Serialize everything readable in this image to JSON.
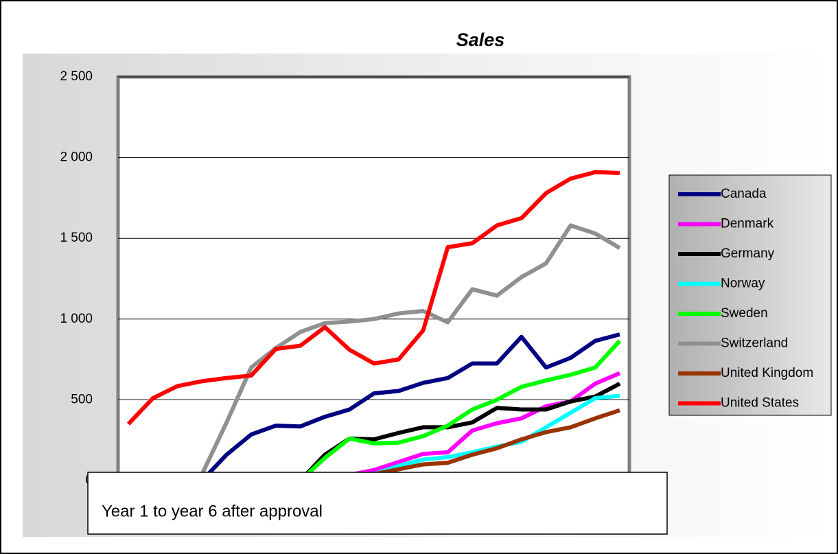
{
  "chart_data": {
    "type": "line",
    "title": "Sales",
    "annotation": "Year 1 to year 6 after approval",
    "categories": [
      null,
      null,
      null,
      null,
      null,
      null,
      null,
      null,
      null,
      null,
      null,
      null,
      null,
      null,
      null,
      null,
      null,
      null,
      null,
      null,
      null
    ],
    "ylim": [
      0,
      2500
    ],
    "yticks": [
      0,
      500,
      {
        "value": 1000,
        "label": "1 000"
      },
      {
        "value": 1500,
        "label": "1 500"
      },
      {
        "value": 2000,
        "label": "2 000"
      },
      {
        "value": 2500,
        "label": "2 500"
      }
    ],
    "grid": true,
    "legend": "right",
    "series": [
      {
        "name": "Canada",
        "color": "#000080",
        "values": [
          0,
          0,
          0,
          0,
          160,
          285,
          340,
          335,
          395,
          440,
          540,
          555,
          605,
          635,
          725,
          725,
          890,
          700,
          760,
          865,
          905
        ]
      },
      {
        "name": "Denmark",
        "color": "#ff00ff",
        "values": [
          0,
          0,
          0,
          0,
          0,
          0,
          0,
          0,
          20,
          35,
          65,
          115,
          165,
          175,
          310,
          355,
          385,
          460,
          490,
          600,
          665
        ]
      },
      {
        "name": "Germany",
        "color": "#000000",
        "values": [
          0,
          0,
          0,
          0,
          0,
          0,
          0,
          0,
          160,
          260,
          255,
          295,
          330,
          330,
          360,
          450,
          440,
          440,
          490,
          520,
          600
        ]
      },
      {
        "name": "Norway",
        "color": "#00ffff",
        "values": [
          0,
          0,
          0,
          0,
          0,
          0,
          0,
          0,
          0,
          0,
          40,
          90,
          130,
          145,
          175,
          210,
          240,
          330,
          420,
          510,
          525
        ]
      },
      {
        "name": "Sweden",
        "color": "#00ff00",
        "values": [
          0,
          0,
          0,
          0,
          0,
          0,
          0,
          0,
          140,
          260,
          230,
          235,
          275,
          340,
          440,
          500,
          580,
          620,
          655,
          700,
          865
        ]
      },
      {
        "name": "Switzerland",
        "color": "#909090",
        "values": [
          0,
          0,
          0,
          40,
          360,
          700,
          820,
          920,
          975,
          985,
          1000,
          1035,
          1050,
          980,
          1185,
          1145,
          1260,
          1345,
          1580,
          1530,
          1440
        ]
      },
      {
        "name": "United Kingdom",
        "color": "#993300",
        "values": [
          0,
          0,
          0,
          0,
          0,
          0,
          0,
          0,
          20,
          35,
          40,
          70,
          100,
          110,
          160,
          200,
          255,
          300,
          330,
          385,
          435
        ]
      },
      {
        "name": "United States",
        "color": "#ff0000",
        "values": [
          350,
          510,
          585,
          615,
          635,
          650,
          815,
          835,
          950,
          810,
          725,
          750,
          930,
          1445,
          1470,
          1580,
          1625,
          1780,
          1870,
          1910,
          1905
        ]
      }
    ]
  }
}
